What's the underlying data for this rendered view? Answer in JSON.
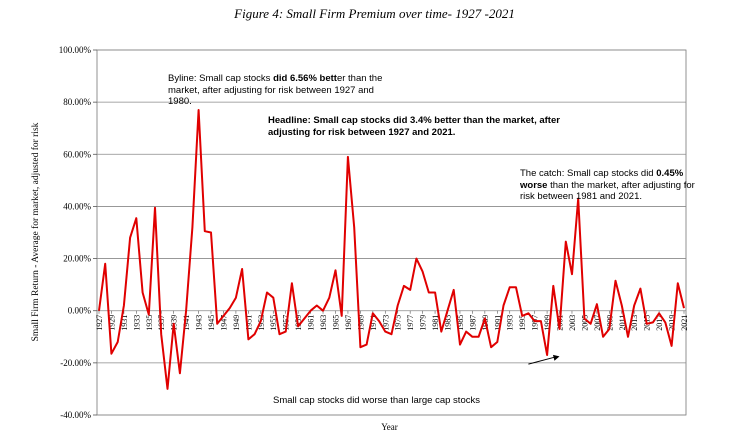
{
  "figure_title": "Figure 4: Small Firm Premium over time- 1927 -2021",
  "notes": {
    "byline": {
      "pre": "Byline: Small cap stocks ",
      "bold": "did 6.56% bett",
      "post": "er than the market, after adjusting for risk between 1927 and 1980."
    },
    "headline": "Headline: Small cap stocks did 3.4% better than the market, after adjusting for risk between 1927 and 2021.",
    "catch": {
      "pre": "The catch: Small cap stocks did ",
      "bold": "0.45% worse",
      "post": " than the market, after adjusting for risk between 1981 and 2021."
    },
    "worse": "Small cap stocks did worse than large cap stocks"
  },
  "chart_data": {
    "type": "line",
    "title": "Figure 4: Small Firm Premium over time- 1927 -2021",
    "xlabel": "Year",
    "ylabel": "Small Firm Return - Average for market, adjusted for risk",
    "ylim": [
      -40,
      100
    ],
    "y_ticks": [
      "100.00%",
      "80.00%",
      "60.00%",
      "40.00%",
      "20.00%",
      "0.00%",
      "-20.00%",
      "-40.00%"
    ],
    "x_tick_labels": [
      "1927",
      "1929",
      "1931",
      "1933",
      "1935",
      "1937",
      "1939",
      "1941",
      "1943",
      "1945",
      "1947",
      "1949",
      "1951",
      "1953",
      "1955",
      "1957",
      "1959",
      "1961",
      "1963",
      "1965",
      "1967",
      "1969",
      "1971",
      "1973",
      "1975",
      "1977",
      "1979",
      "1981",
      "1983",
      "1985",
      "1987",
      "1989",
      "1991",
      "1993",
      "1995",
      "1997",
      "1999",
      "2001",
      "2003",
      "2005",
      "2007",
      "2009",
      "2011",
      "2013",
      "2015",
      "2017",
      "2019",
      "2021"
    ],
    "grid": true,
    "color": "#e00000",
    "series": [
      {
        "x": [
          1927,
          1928,
          1929,
          1930,
          1931,
          1932,
          1933,
          1934,
          1935,
          1936,
          1937,
          1938,
          1939,
          1940,
          1941,
          1942,
          1943,
          1944,
          1945,
          1946,
          1947,
          1948,
          1949,
          1950,
          1951,
          1952,
          1953,
          1954,
          1955,
          1956,
          1957,
          1958,
          1959,
          1960,
          1961,
          1962,
          1963,
          1964,
          1965,
          1966,
          1967,
          1968,
          1969,
          1970,
          1971,
          1972,
          1973,
          1974,
          1975,
          1976,
          1977,
          1978,
          1979,
          1980,
          1981,
          1982,
          1983,
          1984,
          1985,
          1986,
          1987,
          1988,
          1989,
          1990,
          1991,
          1992,
          1993,
          1994,
          1995,
          1996,
          1997,
          1998,
          1999,
          2000,
          2001,
          2002,
          2003,
          2004,
          2005,
          2006,
          2007,
          2008,
          2009,
          2010,
          2011,
          2012,
          2013,
          2014,
          2015,
          2016,
          2017,
          2018,
          2019,
          2020,
          2021
        ],
        "values": [
          0,
          18,
          -16.5,
          -12,
          2,
          28,
          35.5,
          7,
          -1.5,
          39.5,
          -9,
          -30,
          -5,
          -24,
          0,
          32,
          77,
          30.5,
          30,
          -5,
          -2,
          1,
          5,
          16,
          -11,
          -9,
          -4,
          7,
          5,
          -9,
          -8,
          10.5,
          -6,
          -3,
          0,
          2,
          0,
          5,
          15.5,
          -2,
          59,
          32,
          -14,
          -13,
          -1,
          -4,
          -8,
          -9,
          2,
          9.5,
          8,
          20,
          15,
          7,
          7,
          -8,
          0,
          8,
          -13,
          -8,
          -10,
          -10,
          -3,
          -14,
          -12,
          2,
          9,
          9,
          -2,
          -1,
          -4,
          -4,
          -17,
          9.5,
          -7,
          26.5,
          14,
          43,
          -3,
          -5,
          2.5,
          -10,
          -7,
          11.5,
          2,
          -10,
          2,
          8.5,
          -5,
          -4.5,
          -1,
          -4.5,
          -13.5,
          10.5,
          1
        ]
      }
    ],
    "annotation_arrow": {
      "from": [
        1996,
        -20.5
      ],
      "to": [
        2001,
        -17.5
      ]
    }
  }
}
